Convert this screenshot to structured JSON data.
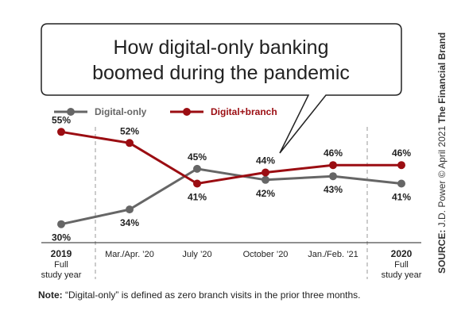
{
  "colors": {
    "digital_only": "#666666",
    "digital_branch": "#9b0d12",
    "text": "#222222",
    "divider": "#999999"
  },
  "title_lines": [
    "How digital-only banking",
    "boomed during the pandemic"
  ],
  "side_text": {
    "source_label": "SOURCE:",
    "source_text": " J.D. Power © April 2021 ",
    "brand": "The Financial Brand"
  },
  "note": {
    "label": "Note:",
    "text": " “Digital-only” is defined as zero branch visits in the prior three months."
  },
  "chart_data": {
    "type": "line",
    "categories": [
      {
        "main": "2019",
        "sub": [
          "Full",
          "study year"
        ]
      },
      {
        "main": "Mar./Apr. ’20",
        "sub": []
      },
      {
        "main": "July ’20",
        "sub": []
      },
      {
        "main": "October ’20",
        "sub": []
      },
      {
        "main": "Jan./Feb. ’21",
        "sub": []
      },
      {
        "main": "2020",
        "sub": [
          "Full",
          "study year"
        ]
      }
    ],
    "series": [
      {
        "name": "Digital-only",
        "color": "#666666",
        "values": [
          30,
          34,
          45,
          42,
          43,
          41
        ],
        "labels": [
          "30%",
          "34%",
          "45%",
          "42%",
          "43%",
          "41%"
        ],
        "label_pos": [
          "below",
          "below",
          "above",
          "below",
          "below",
          "below"
        ]
      },
      {
        "name": "Digital+branch",
        "color": "#9b0d12",
        "values": [
          55,
          52,
          41,
          44,
          46,
          46
        ],
        "labels": [
          "55%",
          "52%",
          "41%",
          "44%",
          "46%",
          "46%"
        ],
        "label_pos": [
          "above",
          "above",
          "below",
          "above",
          "above",
          "above"
        ]
      }
    ],
    "ylim": [
      25,
      60
    ],
    "grid": false,
    "legend_position": "top-left"
  }
}
